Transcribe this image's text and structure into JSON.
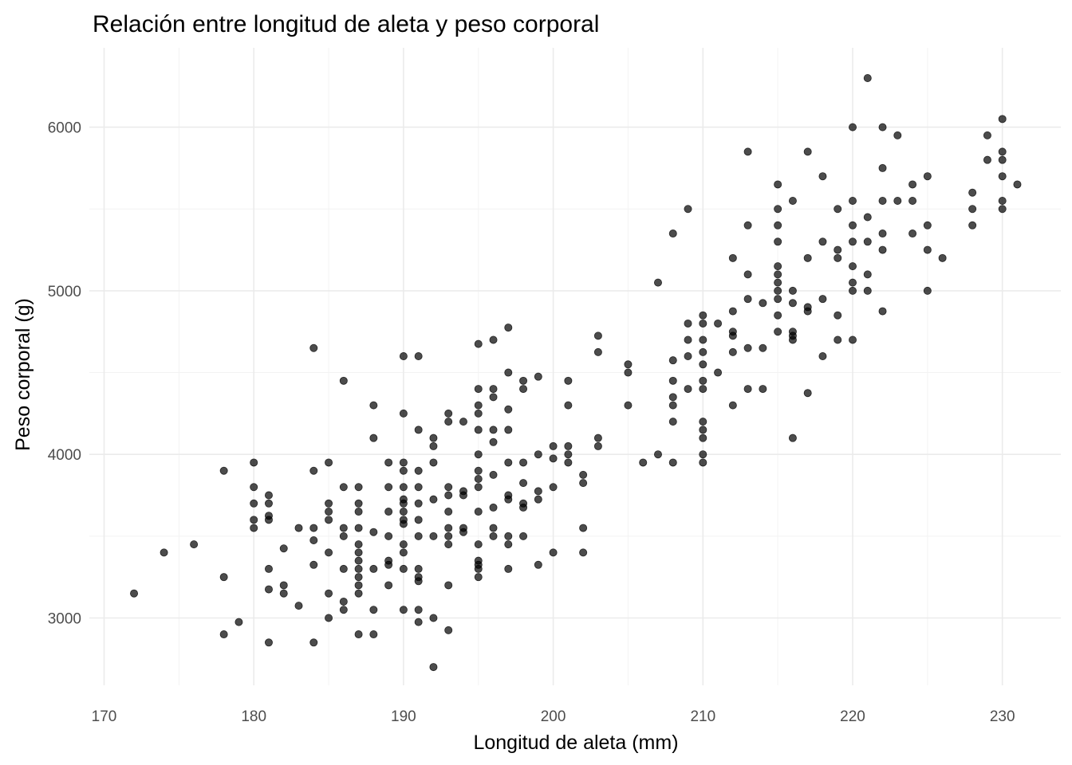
{
  "chart_data": {
    "type": "scatter",
    "title": "Relación entre longitud de aleta y peso corporal",
    "xlabel": "Longitud de aleta (mm)",
    "ylabel": "Peso corporal (g)",
    "xlim": [
      170,
      232
    ],
    "ylim": [
      2600,
      6400
    ],
    "xticks": [
      170,
      180,
      190,
      200,
      210,
      220,
      230
    ],
    "yticks": [
      3000,
      4000,
      5000,
      6000
    ],
    "grid": true,
    "point_color": "#000000",
    "point_alpha": 0.7,
    "points": [
      [
        172,
        3150
      ],
      [
        174,
        3400
      ],
      [
        176,
        3450
      ],
      [
        178,
        3250
      ],
      [
        178,
        3900
      ],
      [
        178,
        2900
      ],
      [
        179,
        2975
      ],
      [
        180,
        3950
      ],
      [
        180,
        3800
      ],
      [
        180,
        3700
      ],
      [
        180,
        3600
      ],
      [
        180,
        3550
      ],
      [
        181,
        3750
      ],
      [
        181,
        3700
      ],
      [
        181,
        3625
      ],
      [
        181,
        3600
      ],
      [
        181,
        3300
      ],
      [
        181,
        3175
      ],
      [
        181,
        2850
      ],
      [
        182,
        3425
      ],
      [
        182,
        3200
      ],
      [
        182,
        3150
      ],
      [
        183,
        3550
      ],
      [
        183,
        3075
      ],
      [
        184,
        4650
      ],
      [
        184,
        3900
      ],
      [
        184,
        3550
      ],
      [
        184,
        3475
      ],
      [
        184,
        3325
      ],
      [
        184,
        2850
      ],
      [
        185,
        3950
      ],
      [
        185,
        3700
      ],
      [
        185,
        3650
      ],
      [
        185,
        3600
      ],
      [
        185,
        3400
      ],
      [
        185,
        3150
      ],
      [
        185,
        3000
      ],
      [
        186,
        4450
      ],
      [
        186,
        3800
      ],
      [
        186,
        3550
      ],
      [
        186,
        3500
      ],
      [
        186,
        3300
      ],
      [
        186,
        3100
      ],
      [
        186,
        3050
      ],
      [
        187,
        3800
      ],
      [
        187,
        3700
      ],
      [
        187,
        3650
      ],
      [
        187,
        3550
      ],
      [
        187,
        3450
      ],
      [
        187,
        3400
      ],
      [
        187,
        3350
      ],
      [
        187,
        3300
      ],
      [
        187,
        3250
      ],
      [
        187,
        3200
      ],
      [
        187,
        3150
      ],
      [
        187,
        2900
      ],
      [
        188,
        4300
      ],
      [
        188,
        4100
      ],
      [
        188,
        3525
      ],
      [
        188,
        3300
      ],
      [
        188,
        3050
      ],
      [
        188,
        2900
      ],
      [
        189,
        3950
      ],
      [
        189,
        3800
      ],
      [
        189,
        3650
      ],
      [
        189,
        3500
      ],
      [
        189,
        3350
      ],
      [
        189,
        3325
      ],
      [
        189,
        3200
      ],
      [
        190,
        4600
      ],
      [
        190,
        4250
      ],
      [
        190,
        3950
      ],
      [
        190,
        3900
      ],
      [
        190,
        3800
      ],
      [
        190,
        3725
      ],
      [
        190,
        3700
      ],
      [
        190,
        3650
      ],
      [
        190,
        3600
      ],
      [
        190,
        3575
      ],
      [
        190,
        3450
      ],
      [
        190,
        3400
      ],
      [
        190,
        3300
      ],
      [
        190,
        3050
      ],
      [
        191,
        4600
      ],
      [
        191,
        4150
      ],
      [
        191,
        3900
      ],
      [
        191,
        3800
      ],
      [
        191,
        3700
      ],
      [
        191,
        3600
      ],
      [
        191,
        3500
      ],
      [
        191,
        3300
      ],
      [
        191,
        3250
      ],
      [
        191,
        3225
      ],
      [
        191,
        3050
      ],
      [
        191,
        2975
      ],
      [
        192,
        4100
      ],
      [
        192,
        4050
      ],
      [
        192,
        3950
      ],
      [
        192,
        3725
      ],
      [
        192,
        3500
      ],
      [
        192,
        3000
      ],
      [
        192,
        2700
      ],
      [
        193,
        4250
      ],
      [
        193,
        4200
      ],
      [
        193,
        3800
      ],
      [
        193,
        3750
      ],
      [
        193,
        3650
      ],
      [
        193,
        3550
      ],
      [
        193,
        3500
      ],
      [
        193,
        3450
      ],
      [
        193,
        3200
      ],
      [
        193,
        2925
      ],
      [
        194,
        4200
      ],
      [
        194,
        3775
      ],
      [
        194,
        3750
      ],
      [
        194,
        3550
      ],
      [
        194,
        3525
      ],
      [
        195,
        4675
      ],
      [
        195,
        4400
      ],
      [
        195,
        4300
      ],
      [
        195,
        4250
      ],
      [
        195,
        4150
      ],
      [
        195,
        4000
      ],
      [
        195,
        3900
      ],
      [
        195,
        3850
      ],
      [
        195,
        3800
      ],
      [
        195,
        3650
      ],
      [
        195,
        3450
      ],
      [
        195,
        3350
      ],
      [
        195,
        3325
      ],
      [
        195,
        3300
      ],
      [
        195,
        3250
      ],
      [
        196,
        4700
      ],
      [
        196,
        4400
      ],
      [
        196,
        4350
      ],
      [
        196,
        4150
      ],
      [
        196,
        4075
      ],
      [
        196,
        3875
      ],
      [
        196,
        3675
      ],
      [
        196,
        3550
      ],
      [
        196,
        3500
      ],
      [
        197,
        4775
      ],
      [
        197,
        4500
      ],
      [
        197,
        4275
      ],
      [
        197,
        4150
      ],
      [
        197,
        3950
      ],
      [
        197,
        3750
      ],
      [
        197,
        3725
      ],
      [
        197,
        3500
      ],
      [
        197,
        3450
      ],
      [
        197,
        3300
      ],
      [
        198,
        4450
      ],
      [
        198,
        4400
      ],
      [
        198,
        3950
      ],
      [
        198,
        3825
      ],
      [
        198,
        3700
      ],
      [
        198,
        3675
      ],
      [
        198,
        3500
      ],
      [
        199,
        4475
      ],
      [
        199,
        4000
      ],
      [
        199,
        3775
      ],
      [
        199,
        3725
      ],
      [
        199,
        3325
      ],
      [
        200,
        4050
      ],
      [
        200,
        3975
      ],
      [
        200,
        3800
      ],
      [
        200,
        3400
      ],
      [
        201,
        4450
      ],
      [
        201,
        4300
      ],
      [
        201,
        4050
      ],
      [
        201,
        4000
      ],
      [
        201,
        3950
      ],
      [
        202,
        3875
      ],
      [
        202,
        3825
      ],
      [
        202,
        3550
      ],
      [
        202,
        3400
      ],
      [
        203,
        4725
      ],
      [
        203,
        4625
      ],
      [
        203,
        4100
      ],
      [
        203,
        4050
      ],
      [
        205,
        4550
      ],
      [
        205,
        4500
      ],
      [
        205,
        4300
      ],
      [
        206,
        3950
      ],
      [
        207,
        5050
      ],
      [
        207,
        4000
      ],
      [
        208,
        5350
      ],
      [
        208,
        4575
      ],
      [
        208,
        4450
      ],
      [
        208,
        4350
      ],
      [
        208,
        4300
      ],
      [
        208,
        4200
      ],
      [
        208,
        3950
      ],
      [
        209,
        5500
      ],
      [
        209,
        4800
      ],
      [
        209,
        4700
      ],
      [
        209,
        4600
      ],
      [
        209,
        4400
      ],
      [
        210,
        4850
      ],
      [
        210,
        4800
      ],
      [
        210,
        4700
      ],
      [
        210,
        4625
      ],
      [
        210,
        4550
      ],
      [
        210,
        4450
      ],
      [
        210,
        4400
      ],
      [
        210,
        4200
      ],
      [
        210,
        4150
      ],
      [
        210,
        4100
      ],
      [
        210,
        4000
      ],
      [
        210,
        3950
      ],
      [
        211,
        4800
      ],
      [
        211,
        4500
      ],
      [
        212,
        5200
      ],
      [
        212,
        4875
      ],
      [
        212,
        4750
      ],
      [
        212,
        4725
      ],
      [
        212,
        4625
      ],
      [
        212,
        4300
      ],
      [
        213,
        5850
      ],
      [
        213,
        5400
      ],
      [
        213,
        5100
      ],
      [
        213,
        4950
      ],
      [
        213,
        4650
      ],
      [
        213,
        4400
      ],
      [
        214,
        4925
      ],
      [
        214,
        4650
      ],
      [
        214,
        4400
      ],
      [
        215,
        5650
      ],
      [
        215,
        5500
      ],
      [
        215,
        5400
      ],
      [
        215,
        5300
      ],
      [
        215,
        5150
      ],
      [
        215,
        5100
      ],
      [
        215,
        5050
      ],
      [
        215,
        5000
      ],
      [
        215,
        4950
      ],
      [
        215,
        4850
      ],
      [
        215,
        4750
      ],
      [
        216,
        5550
      ],
      [
        216,
        5000
      ],
      [
        216,
        4925
      ],
      [
        216,
        4750
      ],
      [
        216,
        4725
      ],
      [
        216,
        4700
      ],
      [
        216,
        4100
      ],
      [
        217,
        5850
      ],
      [
        217,
        5200
      ],
      [
        217,
        4900
      ],
      [
        217,
        4875
      ],
      [
        217,
        4375
      ],
      [
        218,
        5700
      ],
      [
        218,
        5300
      ],
      [
        218,
        4950
      ],
      [
        218,
        4600
      ],
      [
        219,
        5500
      ],
      [
        219,
        5250
      ],
      [
        219,
        5200
      ],
      [
        219,
        4850
      ],
      [
        219,
        4700
      ],
      [
        220,
        6000
      ],
      [
        220,
        5550
      ],
      [
        220,
        5400
      ],
      [
        220,
        5300
      ],
      [
        220,
        5150
      ],
      [
        220,
        5050
      ],
      [
        220,
        5000
      ],
      [
        220,
        4700
      ],
      [
        221,
        6300
      ],
      [
        221,
        5450
      ],
      [
        221,
        5300
      ],
      [
        221,
        5100
      ],
      [
        221,
        5000
      ],
      [
        222,
        6000
      ],
      [
        222,
        5750
      ],
      [
        222,
        5550
      ],
      [
        222,
        5350
      ],
      [
        222,
        5250
      ],
      [
        222,
        4875
      ],
      [
        223,
        5950
      ],
      [
        223,
        5550
      ],
      [
        224,
        5650
      ],
      [
        224,
        5550
      ],
      [
        224,
        5350
      ],
      [
        225,
        5700
      ],
      [
        225,
        5400
      ],
      [
        225,
        5250
      ],
      [
        225,
        5000
      ],
      [
        226,
        5200
      ],
      [
        228,
        5600
      ],
      [
        228,
        5500
      ],
      [
        228,
        5400
      ],
      [
        229,
        5950
      ],
      [
        229,
        5800
      ],
      [
        230,
        6050
      ],
      [
        230,
        5850
      ],
      [
        230,
        5800
      ],
      [
        230,
        5700
      ],
      [
        230,
        5550
      ],
      [
        230,
        5500
      ],
      [
        231,
        5650
      ]
    ]
  }
}
